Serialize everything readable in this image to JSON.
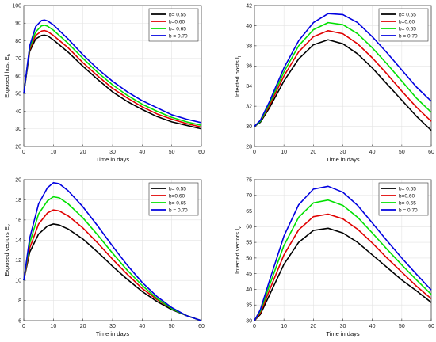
{
  "chart_data": [
    {
      "type": "line",
      "xlabel": "Time in days",
      "ylabel": "Exposed host E",
      "ylabel_sub": "h",
      "xlim": [
        0,
        60
      ],
      "ylim": [
        20,
        100
      ],
      "xticks": [
        0,
        10,
        20,
        30,
        40,
        50,
        60
      ],
      "yticks": [
        20,
        30,
        40,
        50,
        60,
        70,
        80,
        90,
        100
      ],
      "grid": true,
      "legend_position": "top-right",
      "x": [
        0,
        2,
        4,
        6,
        7,
        8,
        10,
        15,
        20,
        25,
        30,
        35,
        40,
        45,
        50,
        55,
        60
      ],
      "series": [
        {
          "name": "b= 0.55",
          "color": "#000000",
          "values": [
            50,
            74,
            81,
            83,
            83.2,
            82.8,
            80.5,
            73.5,
            65.5,
            58,
            51,
            45.5,
            41,
            37,
            34,
            32,
            30
          ]
        },
        {
          "name": "b=0.60",
          "color": "#e00000",
          "values": [
            50,
            75,
            83,
            85.5,
            85.8,
            85.3,
            83,
            76,
            67.5,
            60,
            53,
            47.5,
            42.5,
            38.5,
            35.5,
            33,
            31
          ]
        },
        {
          "name": "b= 0.65",
          "color": "#00e000",
          "values": [
            50,
            76,
            85,
            88.5,
            88.8,
            88.3,
            86,
            78.5,
            70,
            62,
            55,
            49,
            44,
            40,
            36.5,
            34,
            32
          ]
        },
        {
          "name": "b = 0.70",
          "color": "#0000e0",
          "values": [
            50,
            77,
            88,
            91.5,
            91.8,
            91.3,
            89,
            81,
            72,
            64,
            57,
            51,
            46,
            42,
            38,
            35.5,
            33.5
          ]
        }
      ]
    },
    {
      "type": "line",
      "xlabel": "Time in days",
      "ylabel": "Infected  hosts I",
      "ylabel_sub": "h",
      "xlim": [
        0,
        60
      ],
      "ylim": [
        28,
        42
      ],
      "xticks": [
        0,
        10,
        20,
        30,
        40,
        50,
        60
      ],
      "yticks": [
        28,
        30,
        32,
        34,
        36,
        38,
        40,
        42
      ],
      "grid": true,
      "legend_position": "top-right",
      "x": [
        0,
        2,
        5,
        10,
        15,
        20,
        25,
        30,
        35,
        40,
        45,
        50,
        55,
        60
      ],
      "series": [
        {
          "name": "b= 0.55",
          "color": "#000000",
          "values": [
            30,
            30.4,
            31.8,
            34.5,
            36.7,
            38.1,
            38.6,
            38.2,
            37.2,
            35.8,
            34.2,
            32.6,
            31.0,
            29.6
          ]
        },
        {
          "name": "b=0.60",
          "color": "#e00000",
          "values": [
            30,
            30.5,
            32.0,
            35.0,
            37.4,
            38.9,
            39.5,
            39.2,
            38.2,
            36.8,
            35.2,
            33.5,
            31.9,
            30.5
          ]
        },
        {
          "name": "b= 0.65",
          "color": "#00e000",
          "values": [
            30,
            30.5,
            32.2,
            35.4,
            38.0,
            39.6,
            40.3,
            40.1,
            39.2,
            37.8,
            36.2,
            34.5,
            32.8,
            31.4
          ]
        },
        {
          "name": "b = 0.70",
          "color": "#0000e0",
          "values": [
            30,
            30.6,
            32.4,
            35.8,
            38.5,
            40.3,
            41.2,
            41.1,
            40.3,
            38.9,
            37.3,
            35.6,
            33.9,
            32.5
          ]
        }
      ]
    },
    {
      "type": "line",
      "xlabel": "Time in days",
      "ylabel": "Exposed vectors E",
      "ylabel_sub": "v",
      "xlim": [
        0,
        60
      ],
      "ylim": [
        6,
        20
      ],
      "xticks": [
        0,
        10,
        20,
        30,
        40,
        50,
        60
      ],
      "yticks": [
        6,
        8,
        10,
        12,
        14,
        16,
        18,
        20
      ],
      "grid": true,
      "legend_position": "top-right",
      "x": [
        0,
        2,
        5,
        8,
        10,
        12,
        15,
        20,
        25,
        30,
        35,
        40,
        45,
        50,
        55,
        60
      ],
      "series": [
        {
          "name": "b= 0.55",
          "color": "#000000",
          "values": [
            10,
            12.8,
            14.6,
            15.4,
            15.6,
            15.5,
            15.1,
            14.1,
            12.8,
            11.4,
            10.1,
            8.9,
            7.9,
            7.1,
            6.5,
            6.0
          ]
        },
        {
          "name": "b=0.60",
          "color": "#e00000",
          "values": [
            10,
            13.2,
            15.6,
            16.7,
            17.0,
            16.9,
            16.4,
            15.2,
            13.7,
            12.1,
            10.6,
            9.2,
            8.1,
            7.2,
            6.5,
            6.0
          ]
        },
        {
          "name": "b= 0.65",
          "color": "#00e000",
          "values": [
            10,
            13.7,
            16.6,
            17.9,
            18.3,
            18.2,
            17.6,
            16.2,
            14.5,
            12.7,
            11.0,
            9.5,
            8.2,
            7.2,
            6.5,
            6.0
          ]
        },
        {
          "name": "b = 0.70",
          "color": "#0000e0",
          "values": [
            10,
            14.2,
            17.6,
            19.2,
            19.7,
            19.6,
            18.9,
            17.3,
            15.4,
            13.4,
            11.5,
            9.8,
            8.4,
            7.3,
            6.5,
            6.0
          ]
        }
      ]
    },
    {
      "type": "line",
      "xlabel": "Time in days",
      "ylabel": "Infected vectors I",
      "ylabel_sub": "v",
      "xlim": [
        0,
        60
      ],
      "ylim": [
        30,
        75
      ],
      "xticks": [
        0,
        10,
        20,
        30,
        40,
        50,
        60
      ],
      "yticks": [
        30,
        35,
        40,
        45,
        50,
        55,
        60,
        65,
        70,
        75
      ],
      "grid": true,
      "legend_position": "top-right",
      "x": [
        0,
        2,
        5,
        10,
        15,
        20,
        25,
        30,
        35,
        40,
        45,
        50,
        55,
        60
      ],
      "series": [
        {
          "name": "b= 0.55",
          "color": "#000000",
          "values": [
            30,
            32,
            38,
            48,
            55,
            58.8,
            59.5,
            58,
            55,
            51,
            47,
            43,
            39.5,
            35.8
          ]
        },
        {
          "name": "b=0.60",
          "color": "#e00000",
          "values": [
            30,
            32.5,
            39.5,
            51,
            59,
            63.2,
            64.0,
            62.5,
            59.2,
            54.8,
            50,
            45.5,
            41,
            37.0
          ]
        },
        {
          "name": "b= 0.65",
          "color": "#00e000",
          "values": [
            30,
            33,
            41,
            54,
            63,
            67.6,
            68.5,
            66.8,
            63.0,
            58.0,
            52.8,
            47.8,
            43,
            38.4
          ]
        },
        {
          "name": "b = 0.70",
          "color": "#0000e0",
          "values": [
            30,
            33.5,
            42.5,
            57,
            67,
            72,
            72.9,
            71,
            66.8,
            61.2,
            55.5,
            50,
            44.8,
            39.8
          ]
        }
      ]
    }
  ]
}
